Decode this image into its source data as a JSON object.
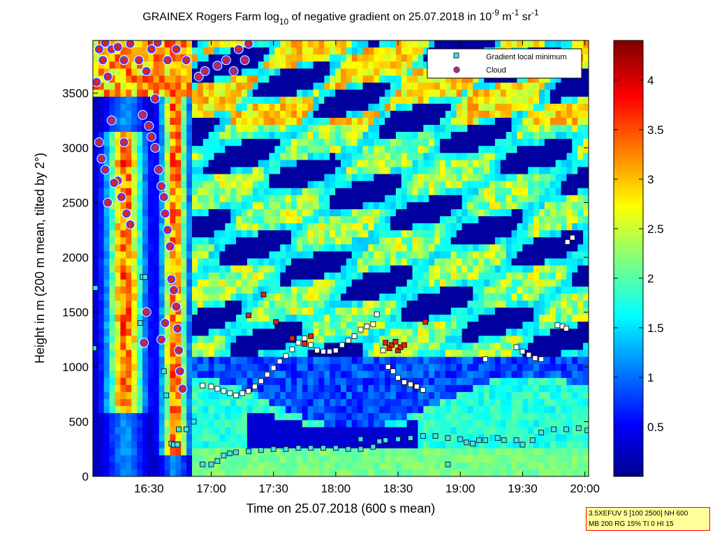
{
  "chart_data": {
    "type": "heatmap",
    "title": "GRAINEX Rogers Farm log10 of negative gradient on 25.07.2018 in 10-9 m-1 sr-1",
    "title_parts": {
      "pre": "GRAINEX Rogers Farm log",
      "log_sub": "10",
      "mid": " of negative gradient on 25.07.2018 in 10",
      "exp1": "-9",
      "unit1": " m",
      "exp2": "-1",
      "unit2": " sr",
      "exp3": "-1"
    },
    "xlabel": "Time on 25.07.2018 (600 s mean)",
    "ylabel": "Height in m (200 m mean, tilted by 2°)",
    "x_ticks": [
      "16:30",
      "17:00",
      "17:30",
      "18:00",
      "18:30",
      "19:00",
      "19:30",
      "20:00"
    ],
    "x_tick_hours": [
      16.5,
      17.0,
      17.5,
      18.0,
      18.5,
      19.0,
      19.5,
      20.0
    ],
    "xlim_hours": [
      16.05,
      20.03
    ],
    "y_ticks": [
      "0",
      "500",
      "1000",
      "1500",
      "2000",
      "2500",
      "3000",
      "3500"
    ],
    "y_tick_values": [
      0,
      500,
      1000,
      1500,
      2000,
      2500,
      3000,
      3500
    ],
    "ylim": [
      0,
      3980
    ],
    "colorbar_ticks": [
      "0.5",
      "1",
      "1.5",
      "2",
      "2.5",
      "3",
      "3.5",
      "4"
    ],
    "colorbar_tick_values": [
      0.5,
      1,
      1.5,
      2,
      2.5,
      3,
      3.5,
      4
    ],
    "colorbar_range": [
      0,
      4.4
    ],
    "colormap": "jet",
    "legend": {
      "position": "top-right",
      "entries": [
        {
          "label": "Gradient local minimum",
          "marker": "square",
          "color": "#40e0f0"
        },
        {
          "label": "Cloud",
          "marker": "circle",
          "color": "#e02020"
        }
      ]
    },
    "series": [
      {
        "name": "Gradient local minimum",
        "type": "scatter",
        "points": [
          [
            16.06,
            1170
          ],
          [
            16.07,
            1720
          ],
          [
            16.45,
            1820
          ],
          [
            16.47,
            1820
          ],
          [
            16.43,
            1400
          ],
          [
            16.62,
            960
          ],
          [
            16.64,
            740
          ],
          [
            16.68,
            300
          ],
          [
            16.7,
            290
          ],
          [
            16.73,
            290
          ],
          [
            16.74,
            430
          ],
          [
            16.8,
            430
          ],
          [
            16.86,
            500
          ],
          [
            16.93,
            110
          ],
          [
            17.0,
            110
          ],
          [
            17.05,
            140
          ],
          [
            17.1,
            190
          ],
          [
            17.15,
            210
          ],
          [
            17.2,
            220
          ],
          [
            17.3,
            230
          ],
          [
            17.4,
            240
          ],
          [
            17.5,
            250
          ],
          [
            17.6,
            250
          ],
          [
            17.7,
            260
          ],
          [
            17.8,
            260
          ],
          [
            17.9,
            260
          ],
          [
            18.0,
            260
          ],
          [
            18.1,
            250
          ],
          [
            18.2,
            250
          ],
          [
            18.3,
            270
          ],
          [
            18.35,
            320
          ],
          [
            18.4,
            330
          ],
          [
            18.5,
            340
          ],
          [
            18.6,
            350
          ],
          [
            18.7,
            370
          ],
          [
            18.8,
            370
          ],
          [
            18.9,
            350
          ],
          [
            19.0,
            340
          ],
          [
            19.05,
            310
          ],
          [
            19.1,
            300
          ],
          [
            19.15,
            330
          ],
          [
            19.2,
            330
          ],
          [
            19.3,
            350
          ],
          [
            19.35,
            330
          ],
          [
            19.45,
            330
          ],
          [
            19.5,
            290
          ],
          [
            19.58,
            330
          ],
          [
            19.65,
            400
          ],
          [
            19.75,
            430
          ],
          [
            19.85,
            430
          ],
          [
            19.95,
            440
          ],
          [
            20.02,
            420
          ],
          [
            18.9,
            110
          ],
          [
            18.2,
            340
          ]
        ]
      },
      {
        "name": "Gradient local minimum (white)",
        "type": "scatter",
        "points": [
          [
            16.93,
            830
          ],
          [
            17.0,
            820
          ],
          [
            17.05,
            800
          ],
          [
            17.1,
            780
          ],
          [
            17.15,
            760
          ],
          [
            17.2,
            740
          ],
          [
            17.25,
            760
          ],
          [
            17.3,
            780
          ],
          [
            17.35,
            820
          ],
          [
            17.4,
            870
          ],
          [
            17.45,
            930
          ],
          [
            17.5,
            990
          ],
          [
            17.55,
            1050
          ],
          [
            17.6,
            1100
          ],
          [
            17.65,
            1160
          ],
          [
            17.7,
            1220
          ],
          [
            17.75,
            1260
          ],
          [
            17.8,
            1200
          ],
          [
            17.85,
            1150
          ],
          [
            17.9,
            1140
          ],
          [
            17.95,
            1140
          ],
          [
            18.0,
            1150
          ],
          [
            18.05,
            1200
          ],
          [
            18.1,
            1240
          ],
          [
            18.15,
            1280
          ],
          [
            18.2,
            1340
          ],
          [
            18.25,
            1370
          ],
          [
            18.3,
            1390
          ],
          [
            18.33,
            1480
          ],
          [
            18.38,
            1150
          ],
          [
            18.42,
            1000
          ],
          [
            18.46,
            960
          ],
          [
            18.5,
            900
          ],
          [
            18.55,
            860
          ],
          [
            18.6,
            840
          ],
          [
            18.65,
            820
          ],
          [
            18.7,
            790
          ],
          [
            19.45,
            1180
          ],
          [
            19.5,
            1140
          ],
          [
            19.55,
            1110
          ],
          [
            19.6,
            1080
          ],
          [
            19.65,
            1070
          ],
          [
            19.2,
            1070
          ],
          [
            19.78,
            1380
          ],
          [
            19.82,
            1370
          ],
          [
            19.85,
            1350
          ],
          [
            19.86,
            2140
          ],
          [
            19.9,
            2180
          ]
        ]
      },
      {
        "name": "Cloud",
        "type": "scatter",
        "points": [
          [
            16.08,
            3600
          ],
          [
            16.1,
            3900
          ],
          [
            16.13,
            3800
          ],
          [
            16.15,
            3960
          ],
          [
            16.17,
            3650
          ],
          [
            16.2,
            3900
          ],
          [
            16.25,
            3920
          ],
          [
            16.3,
            3800
          ],
          [
            16.35,
            3950
          ],
          [
            16.42,
            3800
          ],
          [
            16.48,
            3700
          ],
          [
            16.52,
            3900
          ],
          [
            16.57,
            3960
          ],
          [
            16.65,
            3800
          ],
          [
            16.72,
            3900
          ],
          [
            16.8,
            3800
          ],
          [
            16.9,
            3650
          ],
          [
            16.95,
            3700
          ],
          [
            17.05,
            3750
          ],
          [
            17.12,
            3800
          ],
          [
            17.18,
            3700
          ],
          [
            17.22,
            3900
          ],
          [
            17.27,
            3800
          ],
          [
            17.3,
            3950
          ],
          [
            16.1,
            3050
          ],
          [
            16.12,
            2900
          ],
          [
            16.15,
            2800
          ],
          [
            16.2,
            3250
          ],
          [
            16.25,
            2700
          ],
          [
            16.28,
            2550
          ],
          [
            16.32,
            2400
          ],
          [
            16.35,
            2300
          ],
          [
            16.17,
            2500
          ],
          [
            16.22,
            2680
          ],
          [
            16.3,
            3050
          ],
          [
            16.5,
            3200
          ],
          [
            16.52,
            3100
          ],
          [
            16.55,
            3000
          ],
          [
            16.58,
            2800
          ],
          [
            16.6,
            2650
          ],
          [
            16.62,
            2550
          ],
          [
            16.63,
            2400
          ],
          [
            16.65,
            2250
          ],
          [
            16.67,
            2100
          ],
          [
            16.68,
            1800
          ],
          [
            16.7,
            1700
          ],
          [
            16.72,
            1550
          ],
          [
            16.73,
            1350
          ],
          [
            16.74,
            1150
          ],
          [
            16.75,
            960
          ],
          [
            16.77,
            800
          ],
          [
            16.63,
            1400
          ],
          [
            16.6,
            1250
          ],
          [
            16.48,
            1500
          ],
          [
            16.46,
            1220
          ],
          [
            16.45,
            3300
          ],
          [
            16.55,
            3450
          ]
        ]
      },
      {
        "name": "Cloud (red squares)",
        "type": "scatter",
        "points": [
          [
            17.3,
            1470
          ],
          [
            17.42,
            1660
          ],
          [
            17.52,
            1410
          ],
          [
            17.65,
            1260
          ],
          [
            17.8,
            1280
          ],
          [
            17.75,
            1210
          ],
          [
            18.4,
            1220
          ],
          [
            18.43,
            1170
          ],
          [
            18.45,
            1200
          ],
          [
            18.48,
            1230
          ],
          [
            18.5,
            1150
          ],
          [
            18.52,
            1180
          ],
          [
            18.55,
            1200
          ],
          [
            18.72,
            1410
          ]
        ]
      }
    ]
  },
  "info_box": {
    "line1": "3.5XEFUV 5 [100 2500] NH 600",
    "line2": "MB 200 RG 15% TI 0 HI 15"
  },
  "colors": {
    "background": "#000080",
    "cloud_marker_fill": "#e02020",
    "cloud_marker_edge": "#4040ff",
    "minimum_marker_cyan": "#40e0f0",
    "minimum_marker_white": "#ffffff"
  }
}
